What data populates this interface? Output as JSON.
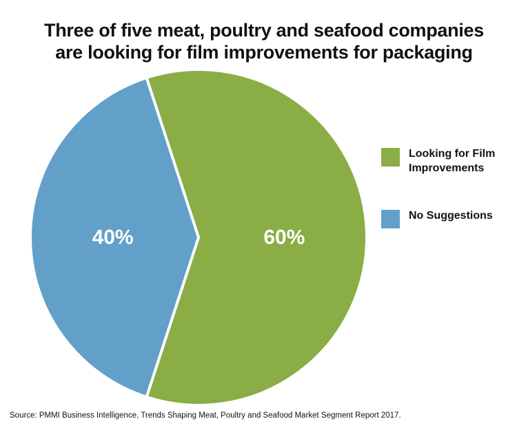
{
  "chart_data": {
    "type": "pie",
    "title_lines": [
      "Three of five meat, poultry and seafood companies",
      "are looking for film improvements for packaging"
    ],
    "slices": [
      {
        "name": "Looking for Film Improvements",
        "value": 60,
        "label": "60%",
        "color": "#8aad45"
      },
      {
        "name": "No Suggestions",
        "value": 40,
        "label": "40%",
        "color": "#62a0c9"
      }
    ],
    "legend": {
      "placement": "right",
      "items": [
        {
          "label": "Looking for Film Improvements",
          "color": "#8aad45"
        },
        {
          "label": "No Suggestions",
          "color": "#62a0c9"
        }
      ]
    }
  },
  "source": "Source: PMMI Business Intelligence, Trends Shaping Meat, Poultry and Seafood Market Segment Report 2017."
}
